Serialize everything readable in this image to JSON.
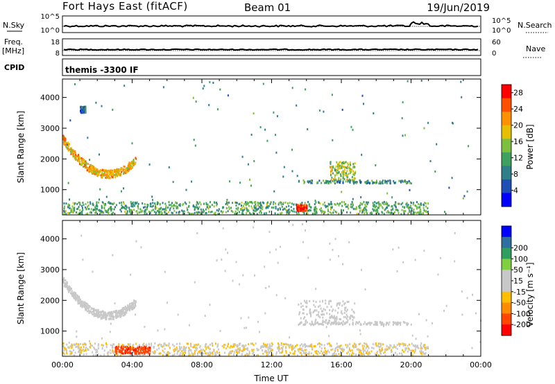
{
  "header": {
    "station": "Fort Hays East (fitACF)",
    "beam": "Beam 01",
    "date": "19/Jun/2019"
  },
  "top_panels": {
    "nsky": {
      "left_label": "N.Sky",
      "right_label": "N.Search",
      "left_ticks": [
        "10^5",
        "10^0"
      ],
      "right_ticks": [
        "10^5",
        "10^0"
      ]
    },
    "freq": {
      "left_label_1": "Freq.",
      "left_label_2": "[MHz]",
      "right_label": "Nave",
      "left_ticks": [
        "18",
        "8"
      ],
      "right_ticks": [
        "60",
        "0"
      ]
    },
    "cpid": {
      "label": "CPID",
      "value": "themis -3300 IF"
    }
  },
  "colors": {
    "power_scale": [
      "#0000ff",
      "#1f4fb4",
      "#2f7f8a",
      "#3fa060",
      "#7fbf3f",
      "#e6c000",
      "#ff9000",
      "#ff5000",
      "#ff0000"
    ],
    "velocity_scale": [
      "#ff0000",
      "#ff4500",
      "#ff8c00",
      "#ffbf00",
      "#c8c8c8",
      "#c8c8c8",
      "#7fcf3f",
      "#2f9f5f",
      "#2f6f9f",
      "#0000ff"
    ]
  },
  "chart_data": [
    {
      "type": "heatmap",
      "name": "power",
      "xlabel": "",
      "ylabel": "Slant Range [km]",
      "xlim": [
        0,
        24
      ],
      "ylim": [
        180,
        4600
      ],
      "x_ticks": [
        "00:00",
        "04:00",
        "08:00",
        "12:00",
        "16:00",
        "20:00",
        "00:00"
      ],
      "y_ticks": [
        "1000",
        "2000",
        "3000",
        "4000"
      ],
      "y_tick_values": [
        1000,
        2000,
        3000,
        4000
      ],
      "colorbar": {
        "label": "Power [dB]",
        "range": [
          0,
          30
        ],
        "ticks": [
          "4",
          "8",
          "12",
          "16",
          "20",
          "24",
          "28"
        ],
        "tick_values": [
          4,
          8,
          12,
          16,
          20,
          24,
          28
        ]
      },
      "features": [
        {
          "desc": "arc echo",
          "t_start": 0.0,
          "t_end": 4.2,
          "range_min": 1450,
          "range_max": 2600,
          "power": 20
        },
        {
          "desc": "near range band",
          "t_start": 0.0,
          "t_end": 21.0,
          "range_min": 200,
          "range_max": 600,
          "power": 12
        },
        {
          "desc": "strong patch",
          "t_start": 13.4,
          "t_end": 14.0,
          "range_min": 300,
          "range_max": 500,
          "power": 28
        },
        {
          "desc": "afternoon echo",
          "t_start": 15.3,
          "t_end": 16.8,
          "range_min": 1300,
          "range_max": 1900,
          "power": 16
        },
        {
          "desc": "horizontal band",
          "t_start": 13.5,
          "t_end": 20.0,
          "range_min": 1200,
          "range_max": 1300,
          "power": 10
        },
        {
          "desc": "cluster",
          "t_start": 1.0,
          "t_end": 1.3,
          "range_min": 3500,
          "range_max": 3700,
          "power": 8
        }
      ]
    },
    {
      "type": "heatmap",
      "name": "velocity",
      "xlabel": "Time UT",
      "ylabel": "Slant Range [km]",
      "xlim": [
        0,
        24
      ],
      "ylim": [
        180,
        4600
      ],
      "x_ticks": [
        "00:00",
        "04:00",
        "08:00",
        "12:00",
        "16:00",
        "20:00",
        "00:00"
      ],
      "y_ticks": [
        "1000",
        "2000",
        "3000",
        "4000"
      ],
      "y_tick_values": [
        1000,
        2000,
        3000,
        4000
      ],
      "colorbar": {
        "label": "Velocity [m s⁻¹]",
        "range": [
          -250,
          250
        ],
        "ticks": [
          "-200",
          "-100",
          "-50",
          "-15",
          "15",
          "50",
          "100",
          "200"
        ],
        "tick_values": [
          -200,
          -100,
          -50,
          -15,
          15,
          50,
          100,
          200
        ]
      },
      "features": [
        {
          "desc": "arc echo",
          "t_start": 0.0,
          "t_end": 4.2,
          "range_min": 1450,
          "range_max": 2600,
          "velocity": 0
        },
        {
          "desc": "near range band",
          "t_start": 0.0,
          "t_end": 21.0,
          "range_min": 200,
          "range_max": 600,
          "velocity": -40
        },
        {
          "desc": "red patch",
          "t_start": 3.0,
          "t_end": 5.0,
          "range_min": 250,
          "range_max": 500,
          "velocity": -180
        },
        {
          "desc": "afternoon echo",
          "t_start": 13.5,
          "t_end": 16.8,
          "range_min": 1300,
          "range_max": 2000,
          "velocity": 0
        },
        {
          "desc": "horizontal band",
          "t_start": 13.5,
          "t_end": 20.0,
          "range_min": 1200,
          "range_max": 1300,
          "velocity": 0
        }
      ]
    }
  ]
}
